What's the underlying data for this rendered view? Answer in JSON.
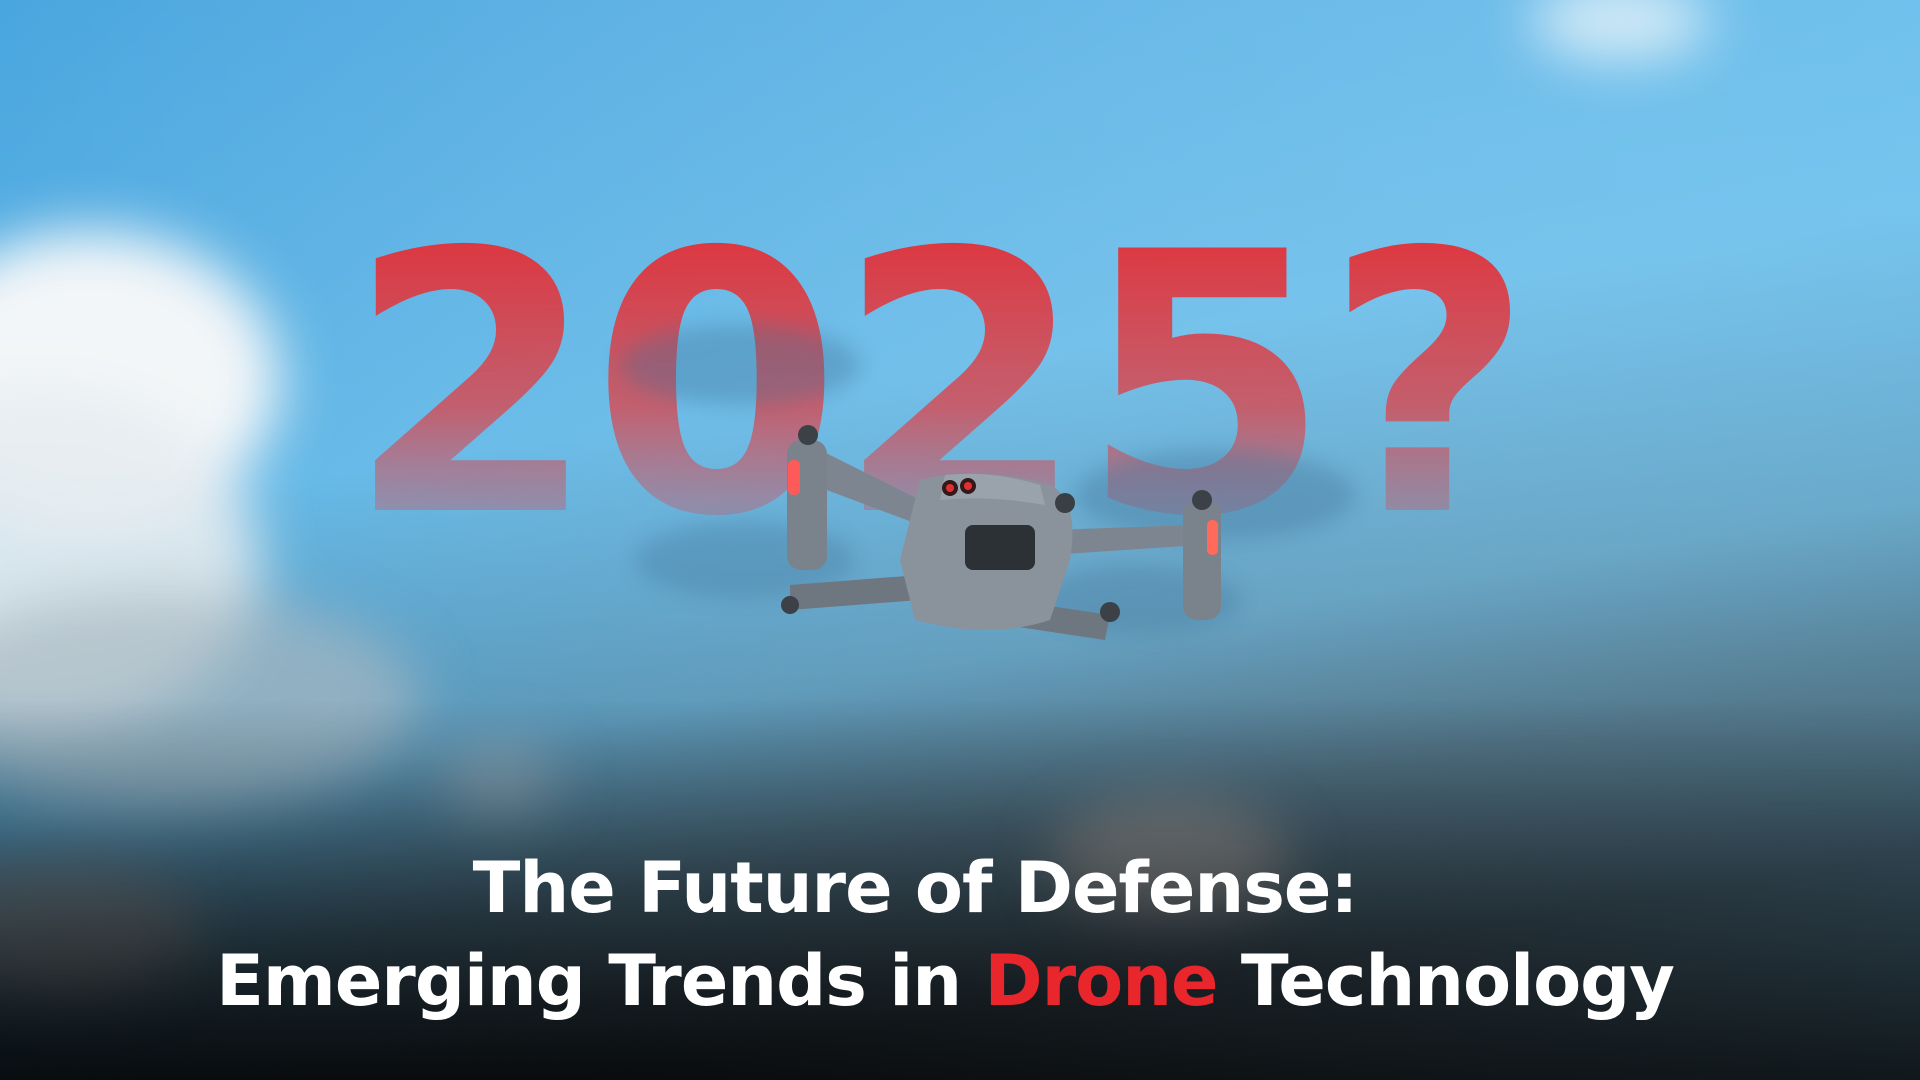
{
  "headline": "2025?",
  "title": {
    "line1": "The Future of Defense:",
    "line2": [
      "Emerging Trends in",
      "Drone",
      "Technology"
    ]
  }
}
